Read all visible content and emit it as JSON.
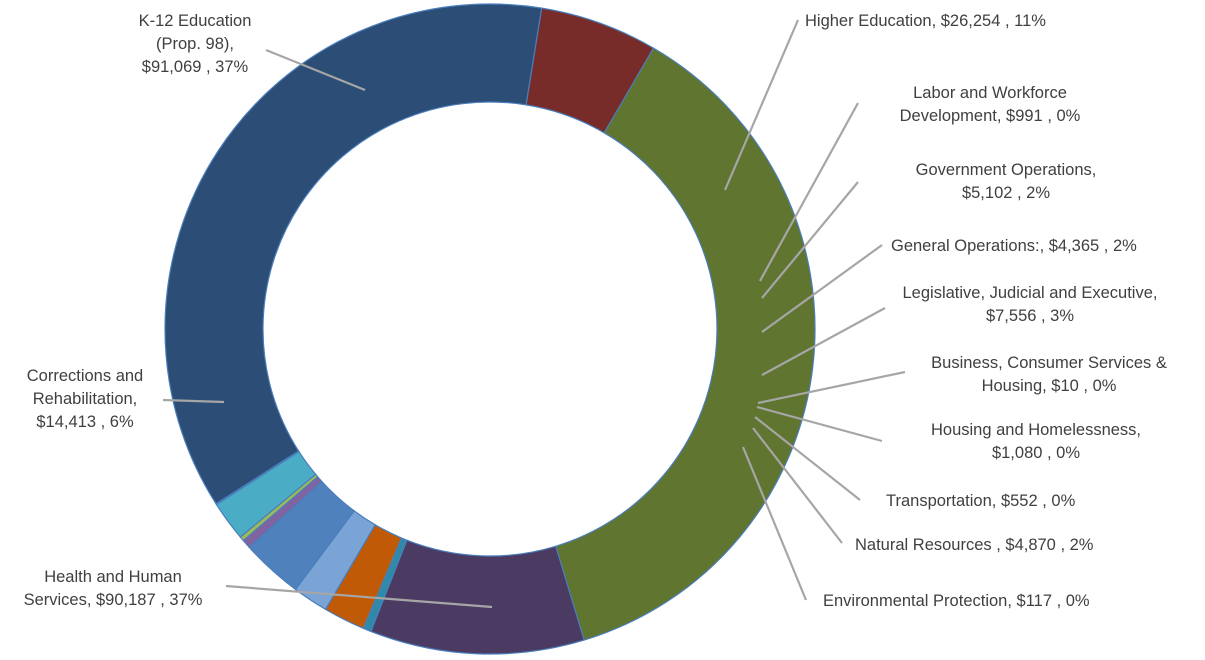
{
  "chart_data": {
    "type": "donut",
    "title": "",
    "legend": "none",
    "slices": [
      {
        "name": "K-12 Education (Prop. 98)",
        "value": 91069,
        "percent_label": "37%",
        "color": "#5f7530",
        "label_lines": [
          "K-12 Education",
          "(Prop. 98),",
          "$91,069 , 37%"
        ]
      },
      {
        "name": "Higher Education",
        "value": 26254,
        "percent_label": "11%",
        "color": "#4b3a62",
        "label_lines": [
          "Higher Education, $26,254 , 11%"
        ]
      },
      {
        "name": "Labor and Workforce Development",
        "value": 991,
        "percent_label": "0%",
        "color": "#2e8aa8",
        "label_lines": [
          "Labor and Workforce",
          "Development, $991 , 0%"
        ]
      },
      {
        "name": "Government Operations",
        "value": 5102,
        "percent_label": "2%",
        "color": "#c05a06",
        "label_lines": [
          "Government Operations,",
          "$5,102 , 2%"
        ]
      },
      {
        "name": "General Operations:",
        "value": 4365,
        "percent_label": "2%",
        "color": "#7aa3d6",
        "label_lines": [
          "General Operations:, $4,365 , 2%"
        ]
      },
      {
        "name": "Legislative, Judicial and Executive",
        "value": 7556,
        "percent_label": "3%",
        "color": "#4f81bd",
        "label_lines": [
          "Legislative, Judicial and Executive,",
          "$7,556 , 3%"
        ]
      },
      {
        "name": "Business, Consumer Services & Housing",
        "value": 10,
        "percent_label": "0%",
        "color": "#8fbf44",
        "label_lines": [
          "Business, Consumer Services &",
          "Housing, $10 , 0%"
        ]
      },
      {
        "name": "Housing and Homelessness",
        "value": 1080,
        "percent_label": "0%",
        "color": "#8064a2",
        "label_lines": [
          "Housing and Homelessness,",
          "$1,080 , 0%"
        ]
      },
      {
        "name": "Transportation",
        "value": 552,
        "percent_label": "0%",
        "color": "#9bbb59",
        "label_lines": [
          "Transportation, $552 , 0%"
        ]
      },
      {
        "name": "Natural Resources",
        "value": 4870,
        "percent_label": "2%",
        "color": "#4bacc6",
        "label_lines": [
          "Natural Resources , $4,870 , 2%"
        ]
      },
      {
        "name": "Environmental Protection",
        "value": 117,
        "percent_label": "0%",
        "color": "#2c7f96",
        "label_lines": [
          "Environmental Protection, $117 , 0%"
        ]
      },
      {
        "name": "Health and Human Services",
        "value": 90187,
        "percent_label": "37%",
        "color": "#2c4d75",
        "label_lines": [
          "Health and Human",
          "Services, $90,187 , 37%"
        ]
      },
      {
        "name": "Corrections and Rehabilitation",
        "value": 14413,
        "percent_label": "6%",
        "color": "#772c2a",
        "label_lines": [
          "Corrections and",
          "Rehabilitation,",
          "$14,413 , 6%"
        ]
      }
    ]
  }
}
